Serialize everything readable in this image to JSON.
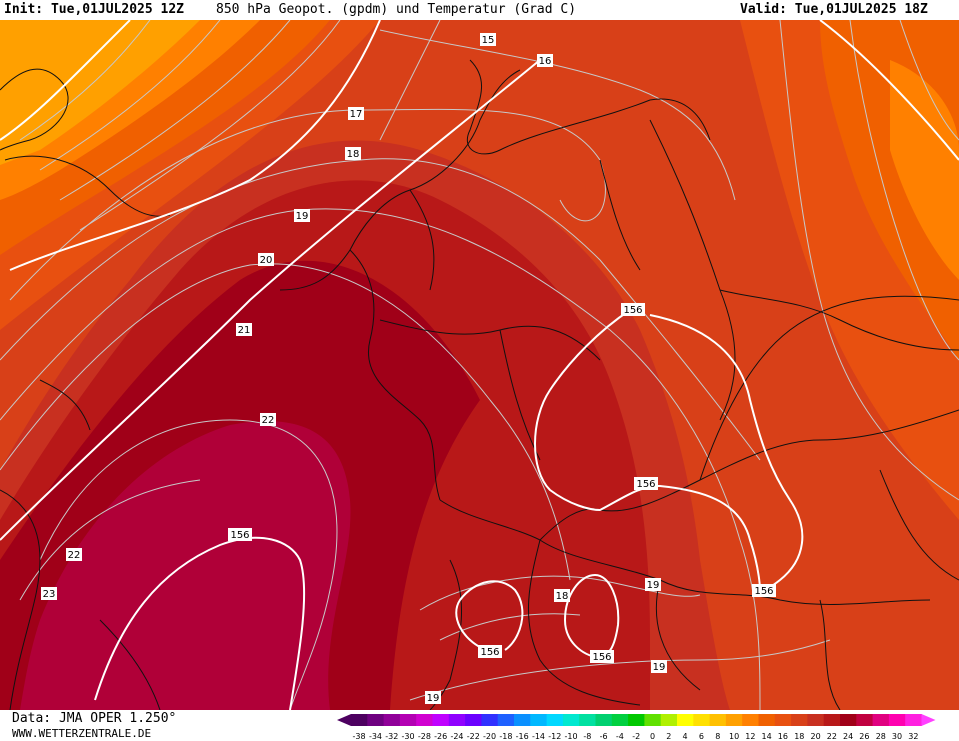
{
  "header": {
    "init": "Init: Tue,01JUL2025 12Z",
    "title": "850 hPa Geopot. (gpdm) und Temperatur (Grad C)",
    "valid": "Valid: Tue,01JUL2025 18Z"
  },
  "footer": {
    "data_source": "Data: JMA OPER 1.250°",
    "website": "WWW.WETTERZENTRALE.DE"
  },
  "legend": {
    "labels": [
      "-38",
      "-34",
      "-32",
      "-30",
      "-28",
      "-26",
      "-24",
      "-22",
      "-20",
      "-18",
      "-16",
      "-14",
      "-12",
      "-10",
      "-8",
      "-6",
      "-4",
      "-2",
      "0",
      "2",
      "4",
      "6",
      "8",
      "10",
      "12",
      "14",
      "16",
      "18",
      "20",
      "22",
      "24",
      "26",
      "28",
      "30",
      "32"
    ],
    "colors": [
      "#4d0060",
      "#6e0080",
      "#900099",
      "#b300b3",
      "#d000d0",
      "#c000ff",
      "#9000ff",
      "#6a00ff",
      "#3030ff",
      "#1e60ff",
      "#0a90ff",
      "#00b8ff",
      "#00d8ff",
      "#00e8d0",
      "#00e0a0",
      "#00d070",
      "#00d040",
      "#00c800",
      "#60e000",
      "#b0f000",
      "#ffff00",
      "#ffe000",
      "#ffc000",
      "#ffa000",
      "#ff8000",
      "#f06000",
      "#e85010",
      "#d84018",
      "#c83020",
      "#b81818",
      "#a00018",
      "#c00040",
      "#e00080",
      "#ff00b0",
      "#ff20e0"
    ],
    "min_arrow_color": "#4d0060",
    "max_arrow_color": "#ff40ff"
  },
  "temperature_labels": [
    "15",
    "16",
    "17",
    "18",
    "19",
    "20",
    "21",
    "22",
    "22",
    "23",
    "18",
    "19",
    "19",
    "19"
  ],
  "geopotential_labels": [
    "156",
    "156",
    "156",
    "156",
    "156",
    "156"
  ]
}
